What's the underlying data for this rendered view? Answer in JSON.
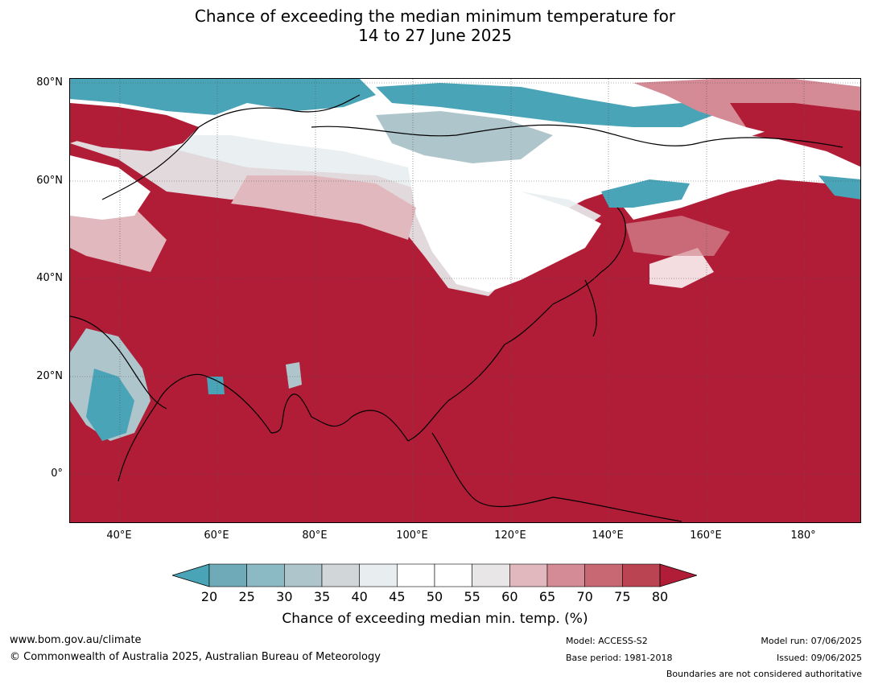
{
  "title_line1": "Chance of exceeding the median minimum temperature for",
  "title_line2": "14 to 27 June 2025",
  "lat_labels": [
    "80°N",
    "60°N",
    "40°N",
    "20°N",
    "0°"
  ],
  "lon_labels": [
    "40°E",
    "60°E",
    "80°E",
    "100°E",
    "120°E",
    "140°E",
    "160°E",
    "180°"
  ],
  "colorbar": {
    "ticks": [
      "20",
      "25",
      "30",
      "35",
      "40",
      "45",
      "50",
      "55",
      "60",
      "65",
      "70",
      "75",
      "80"
    ],
    "colors": [
      "#4aa4b7",
      "#6eaab8",
      "#8bb9c4",
      "#aec5cc",
      "#d1d6d9",
      "#e8eef0",
      "#ffffff",
      "#ffffff",
      "#e8e6e6",
      "#e0b8bd",
      "#d48b95",
      "#c76872",
      "#bb4452",
      "#b11d37"
    ],
    "label": "Chance of exceeding median min. temp. (%)"
  },
  "footer": {
    "website": "www.bom.gov.au/climate",
    "copyright": "© Commonwealth of Australia 2025, Australian Bureau of Meteorology",
    "model": "Model: ACCESS-S2",
    "base_period": "Base period: 1981-2018",
    "model_run": "Model run: 07/06/2025",
    "issued": "Issued: 09/06/2025",
    "boundaries": "Boundaries are not considered authoritative"
  },
  "map_colors": {
    "high": "#b11d37",
    "teal": "#4aa4b7",
    "light_blue": "#aec5cc",
    "pink": "#d48b95",
    "light_pink": "#e0b8bd"
  }
}
